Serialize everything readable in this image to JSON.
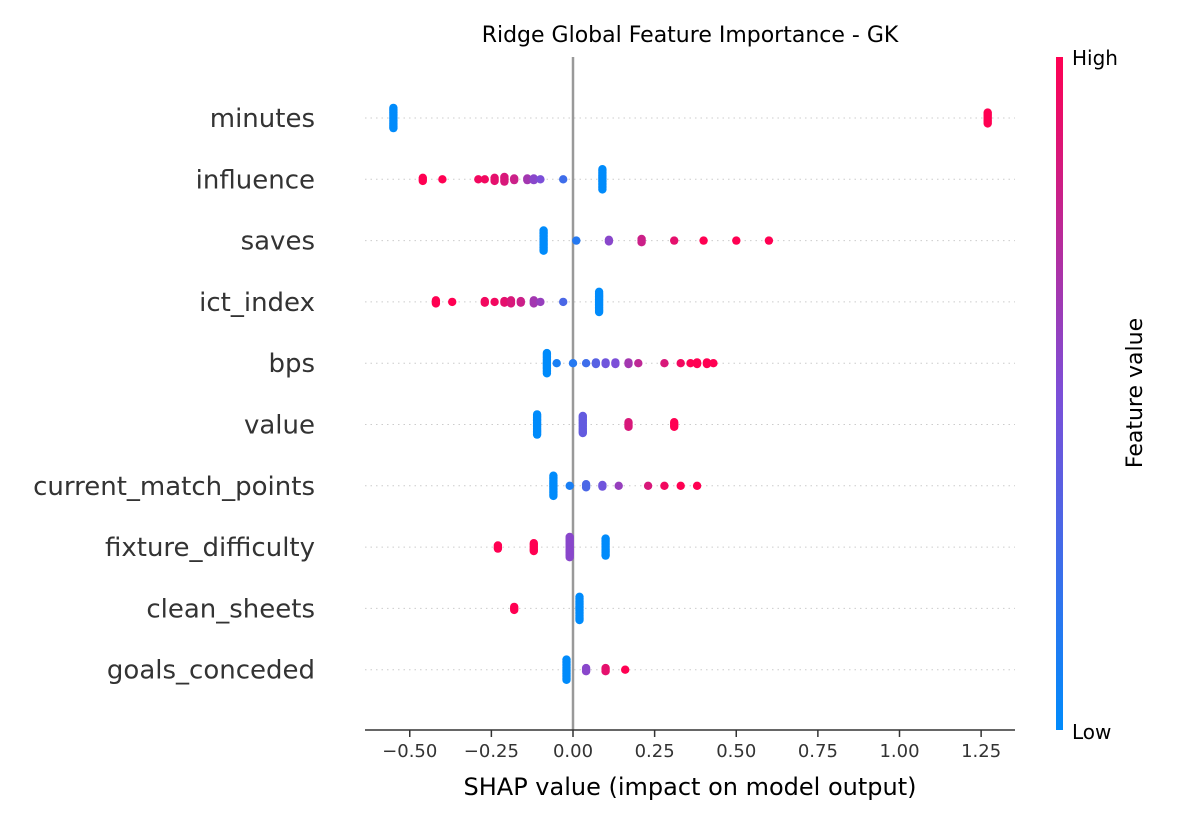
{
  "chart_data": {
    "type": "scatter",
    "subtype": "shap-beeswarm",
    "title": "Ridge Global Feature Importance - GK",
    "xlabel": "SHAP value (impact on model output)",
    "xlim": [
      -0.64,
      1.36
    ],
    "xticks": [
      -0.5,
      -0.25,
      0.0,
      0.25,
      0.5,
      0.75,
      1.0,
      1.25
    ],
    "xtick_labels": [
      "−0.50",
      "−0.25",
      "0.00",
      "0.25",
      "0.50",
      "0.75",
      "1.00",
      "1.25"
    ],
    "grid": false,
    "colorbar": {
      "label": "Feature value",
      "high_label": "High",
      "low_label": "Low",
      "low_color": "#008bfb",
      "mid_color": "#7c4fd8",
      "high_color": "#ff0052"
    },
    "features": [
      {
        "name": "minutes",
        "points": [
          {
            "x": -0.55,
            "v": 0.0,
            "n": 14
          },
          {
            "x": 1.27,
            "v": 1.0,
            "n": 8
          }
        ]
      },
      {
        "name": "influence",
        "points": [
          {
            "x": 0.09,
            "v": 0.0,
            "n": 14
          },
          {
            "x": -0.46,
            "v": 1.0,
            "n": 3
          },
          {
            "x": -0.4,
            "v": 1.0,
            "n": 1
          },
          {
            "x": -0.29,
            "v": 0.95,
            "n": 1
          },
          {
            "x": -0.27,
            "v": 0.95,
            "n": 1
          },
          {
            "x": -0.24,
            "v": 0.9,
            "n": 3
          },
          {
            "x": -0.21,
            "v": 0.85,
            "n": 4
          },
          {
            "x": -0.18,
            "v": 0.8,
            "n": 2
          },
          {
            "x": -0.14,
            "v": 0.65,
            "n": 2
          },
          {
            "x": -0.12,
            "v": 0.55,
            "n": 2
          },
          {
            "x": -0.1,
            "v": 0.5,
            "n": 1
          },
          {
            "x": -0.03,
            "v": 0.25,
            "n": 1
          }
        ]
      },
      {
        "name": "saves",
        "points": [
          {
            "x": -0.09,
            "v": 0.0,
            "n": 14
          },
          {
            "x": 0.01,
            "v": 0.15,
            "n": 1
          },
          {
            "x": 0.11,
            "v": 0.55,
            "n": 2
          },
          {
            "x": 0.21,
            "v": 0.8,
            "n": 3
          },
          {
            "x": 0.31,
            "v": 0.9,
            "n": 1
          },
          {
            "x": 0.4,
            "v": 1.0,
            "n": 1
          },
          {
            "x": 0.5,
            "v": 1.0,
            "n": 1
          },
          {
            "x": 0.6,
            "v": 1.0,
            "n": 1
          }
        ]
      },
      {
        "name": "ict_index",
        "points": [
          {
            "x": 0.08,
            "v": 0.0,
            "n": 14
          },
          {
            "x": -0.42,
            "v": 1.0,
            "n": 3
          },
          {
            "x": -0.37,
            "v": 1.0,
            "n": 1
          },
          {
            "x": -0.27,
            "v": 0.95,
            "n": 2
          },
          {
            "x": -0.24,
            "v": 0.95,
            "n": 1
          },
          {
            "x": -0.21,
            "v": 0.9,
            "n": 2
          },
          {
            "x": -0.19,
            "v": 0.85,
            "n": 3
          },
          {
            "x": -0.16,
            "v": 0.8,
            "n": 2
          },
          {
            "x": -0.12,
            "v": 0.65,
            "n": 3
          },
          {
            "x": -0.1,
            "v": 0.6,
            "n": 1
          },
          {
            "x": -0.03,
            "v": 0.3,
            "n": 1
          }
        ]
      },
      {
        "name": "bps",
        "points": [
          {
            "x": -0.08,
            "v": 0.0,
            "n": 14
          },
          {
            "x": -0.05,
            "v": 0.1,
            "n": 1
          },
          {
            "x": 0.0,
            "v": 0.15,
            "n": 1
          },
          {
            "x": 0.04,
            "v": 0.25,
            "n": 1
          },
          {
            "x": 0.07,
            "v": 0.35,
            "n": 2
          },
          {
            "x": 0.1,
            "v": 0.45,
            "n": 2
          },
          {
            "x": 0.13,
            "v": 0.5,
            "n": 2
          },
          {
            "x": 0.17,
            "v": 0.65,
            "n": 2
          },
          {
            "x": 0.2,
            "v": 0.75,
            "n": 1
          },
          {
            "x": 0.28,
            "v": 0.85,
            "n": 1
          },
          {
            "x": 0.33,
            "v": 0.95,
            "n": 1
          },
          {
            "x": 0.36,
            "v": 1.0,
            "n": 1
          },
          {
            "x": 0.38,
            "v": 1.0,
            "n": 2
          },
          {
            "x": 0.41,
            "v": 1.0,
            "n": 2
          },
          {
            "x": 0.43,
            "v": 1.0,
            "n": 1
          }
        ]
      },
      {
        "name": "value",
        "points": [
          {
            "x": -0.11,
            "v": 0.0,
            "n": 14
          },
          {
            "x": 0.03,
            "v": 0.4,
            "n": 12
          },
          {
            "x": 0.17,
            "v": 0.85,
            "n": 4
          },
          {
            "x": 0.31,
            "v": 1.0,
            "n": 4
          }
        ]
      },
      {
        "name": "current_match_points",
        "points": [
          {
            "x": -0.06,
            "v": 0.0,
            "n": 14
          },
          {
            "x": -0.01,
            "v": 0.1,
            "n": 1
          },
          {
            "x": 0.04,
            "v": 0.3,
            "n": 3
          },
          {
            "x": 0.09,
            "v": 0.45,
            "n": 2
          },
          {
            "x": 0.14,
            "v": 0.6,
            "n": 1
          },
          {
            "x": 0.23,
            "v": 0.85,
            "n": 1
          },
          {
            "x": 0.28,
            "v": 0.95,
            "n": 1
          },
          {
            "x": 0.33,
            "v": 1.0,
            "n": 1
          },
          {
            "x": 0.38,
            "v": 1.0,
            "n": 1
          }
        ]
      },
      {
        "name": "fixture_difficulty",
        "points": [
          {
            "x": 0.1,
            "v": 0.0,
            "n": 12
          },
          {
            "x": -0.01,
            "v": 0.55,
            "n": 14
          },
          {
            "x": -0.12,
            "v": 1.0,
            "n": 6
          },
          {
            "x": -0.23,
            "v": 1.0,
            "n": 3
          }
        ]
      },
      {
        "name": "clean_sheets",
        "points": [
          {
            "x": 0.02,
            "v": 0.0,
            "n": 16
          },
          {
            "x": -0.18,
            "v": 1.0,
            "n": 3
          }
        ]
      },
      {
        "name": "goals_conceded",
        "points": [
          {
            "x": -0.02,
            "v": 0.0,
            "n": 14
          },
          {
            "x": 0.04,
            "v": 0.55,
            "n": 3
          },
          {
            "x": 0.1,
            "v": 0.9,
            "n": 3
          },
          {
            "x": 0.16,
            "v": 1.0,
            "n": 1
          }
        ]
      }
    ]
  }
}
